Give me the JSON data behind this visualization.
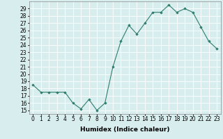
{
  "x": [
    0,
    1,
    2,
    3,
    4,
    5,
    6,
    7,
    8,
    9,
    10,
    11,
    12,
    13,
    14,
    15,
    16,
    17,
    18,
    19,
    20,
    21,
    22,
    23
  ],
  "y": [
    18.5,
    17.5,
    17.5,
    17.5,
    17.5,
    16.0,
    15.2,
    16.5,
    15.0,
    16.0,
    21.0,
    24.5,
    26.7,
    25.5,
    27.0,
    28.5,
    28.5,
    29.5,
    28.5,
    29.0,
    28.5,
    26.5,
    24.5,
    23.5
  ],
  "line_color": "#2e7d6e",
  "marker": "D",
  "marker_size": 1.8,
  "bg_color": "#d8eeee",
  "grid_color": "#ffffff",
  "xlabel": "Humidex (Indice chaleur)",
  "ylabel_ticks": [
    15,
    16,
    17,
    18,
    19,
    20,
    21,
    22,
    23,
    24,
    25,
    26,
    27,
    28,
    29
  ],
  "ylim": [
    14.5,
    30.0
  ],
  "xlim": [
    -0.5,
    23.5
  ],
  "xticks": [
    0,
    1,
    2,
    3,
    4,
    5,
    6,
    7,
    8,
    9,
    10,
    11,
    12,
    13,
    14,
    15,
    16,
    17,
    18,
    19,
    20,
    21,
    22,
    23
  ],
  "xlabel_fontsize": 6.5,
  "tick_fontsize": 5.5,
  "linewidth": 0.8
}
